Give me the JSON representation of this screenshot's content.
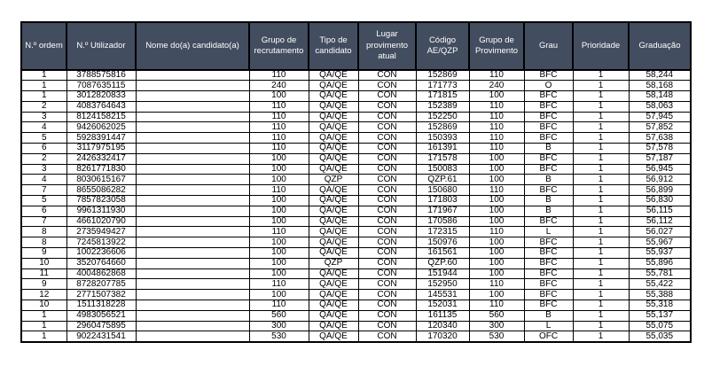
{
  "table": {
    "colors": {
      "header_bg": "#424D5F",
      "header_text": "#FFFFFF",
      "row_bg": "#FFFFFF",
      "row_text": "#000000",
      "border": "#000000"
    },
    "columns": [
      "N.º ordem",
      "N.º Utilizador",
      "Nome do(a) candidato(a)",
      "Grupo de recrutamento",
      "Tipo de candidato",
      "Lugar provimento atual",
      "Código AE/QZP",
      "Grupo de Provimento",
      "Grau",
      "Prioridade",
      "Graduação"
    ],
    "rows": [
      [
        "1",
        "3788575816",
        "",
        "110",
        "QA/QE",
        "CON",
        "152869",
        "110",
        "BFC",
        "1",
        "58,244"
      ],
      [
        "1",
        "7087635115",
        "",
        "240",
        "QA/QE",
        "CON",
        "171773",
        "240",
        "O",
        "1",
        "58,168"
      ],
      [
        "1",
        "3012820833",
        "",
        "100",
        "QA/QE",
        "CON",
        "171815",
        "100",
        "BFC",
        "1",
        "58,148"
      ],
      [
        "2",
        "4083764643",
        "",
        "110",
        "QA/QE",
        "CON",
        "152389",
        "110",
        "BFC",
        "1",
        "58,063"
      ],
      [
        "3",
        "8124158215",
        "",
        "110",
        "QA/QE",
        "CON",
        "152250",
        "110",
        "BFC",
        "1",
        "57,945"
      ],
      [
        "4",
        "9426062025",
        "",
        "110",
        "QA/QE",
        "CON",
        "152869",
        "110",
        "BFC",
        "1",
        "57,852"
      ],
      [
        "5",
        "5928391447",
        "",
        "110",
        "QA/QE",
        "CON",
        "150393",
        "110",
        "BFC",
        "1",
        "57,638"
      ],
      [
        "6",
        "3117975195",
        "",
        "110",
        "QA/QE",
        "CON",
        "161391",
        "110",
        "B",
        "1",
        "57,578"
      ],
      [
        "2",
        "2426332417",
        "",
        "100",
        "QA/QE",
        "CON",
        "171578",
        "100",
        "BFC",
        "1",
        "57,187"
      ],
      [
        "3",
        "8261771830",
        "",
        "100",
        "QA/QE",
        "CON",
        "150083",
        "100",
        "BFC",
        "1",
        "56,945"
      ],
      [
        "4",
        "8030615167",
        "",
        "100",
        "QZP",
        "CON",
        "QZP.61",
        "100",
        "B",
        "1",
        "56,912"
      ],
      [
        "7",
        "8655086282",
        "",
        "110",
        "QA/QE",
        "CON",
        "150680",
        "110",
        "BFC",
        "1",
        "56,899"
      ],
      [
        "5",
        "7857823058",
        "",
        "100",
        "QA/QE",
        "CON",
        "171803",
        "100",
        "B",
        "1",
        "56,830"
      ],
      [
        "6",
        "9961311930",
        "",
        "100",
        "QA/QE",
        "CON",
        "171967",
        "100",
        "B",
        "1",
        "56,115"
      ],
      [
        "7",
        "4661020790",
        "",
        "100",
        "QA/QE",
        "CON",
        "170586",
        "100",
        "BFC",
        "1",
        "56,112"
      ],
      [
        "8",
        "2735949427",
        "",
        "110",
        "QA/QE",
        "CON",
        "172315",
        "110",
        "L",
        "1",
        "56,027"
      ],
      [
        "8",
        "7245813922",
        "",
        "100",
        "QA/QE",
        "CON",
        "150976",
        "100",
        "BFC",
        "1",
        "55,967"
      ],
      [
        "9",
        "1002236606",
        "",
        "100",
        "QA/QE",
        "CON",
        "161561",
        "100",
        "BFC",
        "1",
        "55,937"
      ],
      [
        "10",
        "3520764660",
        "",
        "100",
        "QZP",
        "CON",
        "QZP.60",
        "100",
        "BFC",
        "1",
        "55,896"
      ],
      [
        "11",
        "4004862868",
        "",
        "100",
        "QA/QE",
        "CON",
        "151944",
        "100",
        "BFC",
        "1",
        "55,781"
      ],
      [
        "9",
        "8728207785",
        "",
        "110",
        "QA/QE",
        "CON",
        "152950",
        "110",
        "BFC",
        "1",
        "55,422"
      ],
      [
        "12",
        "2771507382",
        "",
        "100",
        "QA/QE",
        "CON",
        "145531",
        "100",
        "BFC",
        "1",
        "55,388"
      ],
      [
        "10",
        "1511318228",
        "",
        "110",
        "QA/QE",
        "CON",
        "152031",
        "110",
        "BFC",
        "1",
        "55,318"
      ],
      [
        "1",
        "4983056521",
        "",
        "560",
        "QA/QE",
        "CON",
        "161135",
        "560",
        "B",
        "1",
        "55,137"
      ],
      [
        "1",
        "2960475895",
        "",
        "300",
        "QA/QE",
        "CON",
        "120340",
        "300",
        "L",
        "1",
        "55,075"
      ],
      [
        "1",
        "9022431541",
        "",
        "530",
        "QA/QE",
        "CON",
        "170320",
        "530",
        "OFC",
        "1",
        "55,035"
      ]
    ]
  }
}
